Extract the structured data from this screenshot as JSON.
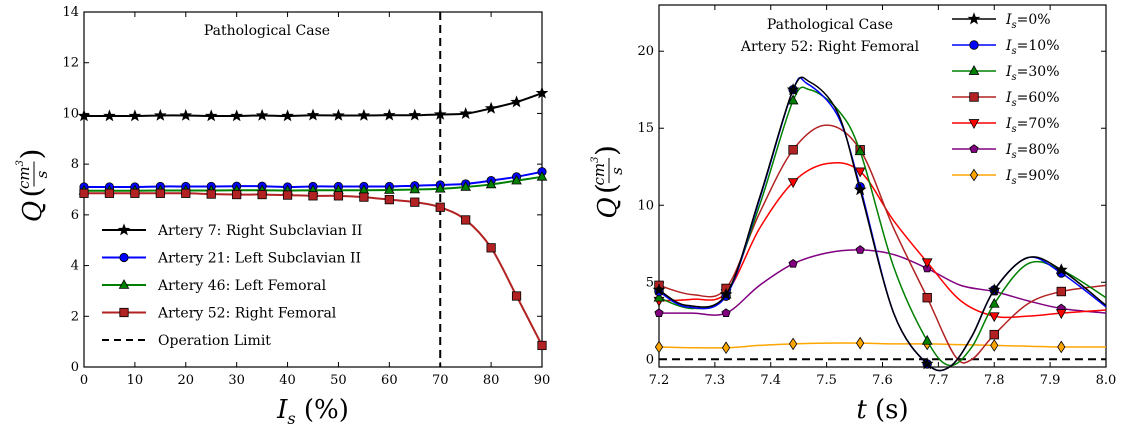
{
  "chart_data": [
    {
      "type": "line",
      "annotation": [
        "Pathological Case"
      ],
      "xlabel": {
        "main": "I",
        "sub": "s",
        "rest": " (%)"
      },
      "ylabel": {
        "main": "Q",
        "frac_num": "cm",
        "frac_num_sup": "3",
        "frac_den": "s"
      },
      "xlim": [
        0,
        90
      ],
      "ylim": [
        0,
        14
      ],
      "xticks": [
        "0",
        "10",
        "20",
        "30",
        "40",
        "50",
        "60",
        "70",
        "80",
        "90"
      ],
      "yticks": [
        "0",
        "2",
        "4",
        "6",
        "8",
        "10",
        "12",
        "14"
      ],
      "grid": false,
      "legend_position": "lower-left",
      "x": [
        0,
        5,
        10,
        15,
        20,
        25,
        30,
        35,
        40,
        45,
        50,
        55,
        60,
        65,
        70,
        75,
        80,
        85,
        90
      ],
      "series": [
        {
          "name": "Artery 7: Right Subclavian II",
          "color": "#000000",
          "marker": "star",
          "values": [
            9.9,
            9.9,
            9.9,
            9.92,
            9.92,
            9.9,
            9.9,
            9.92,
            9.9,
            9.93,
            9.92,
            9.92,
            9.93,
            9.93,
            9.96,
            9.99,
            10.2,
            10.45,
            10.8
          ]
        },
        {
          "name": "Artery 21: Left Subclavian II",
          "color": "#0000ff",
          "marker": "circle",
          "values": [
            7.1,
            7.1,
            7.1,
            7.12,
            7.12,
            7.12,
            7.13,
            7.13,
            7.1,
            7.12,
            7.12,
            7.12,
            7.12,
            7.15,
            7.18,
            7.22,
            7.35,
            7.5,
            7.7
          ]
        },
        {
          "name": "Artery 46: Left Femoral",
          "color": "#008000",
          "marker": "triangle-up",
          "values": [
            6.95,
            6.95,
            6.95,
            6.96,
            6.96,
            6.96,
            6.97,
            6.97,
            6.96,
            6.97,
            6.97,
            6.97,
            6.98,
            7.0,
            7.03,
            7.1,
            7.2,
            7.35,
            7.5
          ]
        },
        {
          "name": "Artery 52: Right Femoral",
          "color": "#b22222",
          "marker": "square",
          "values": [
            6.85,
            6.85,
            6.85,
            6.85,
            6.85,
            6.82,
            6.8,
            6.8,
            6.78,
            6.75,
            6.75,
            6.7,
            6.6,
            6.5,
            6.3,
            5.8,
            4.7,
            2.8,
            0.85
          ]
        }
      ],
      "reference_lines": [
        {
          "name": "Operation Limit",
          "orientation": "vertical",
          "value": 70,
          "color": "#000000",
          "style": "dashed"
        }
      ]
    },
    {
      "type": "line",
      "annotation": [
        "Pathological Case",
        "Artery 52: Right Femoral"
      ],
      "xlabel": {
        "main": "t",
        "rest": " (s)"
      },
      "ylabel": {
        "main": "Q",
        "frac_num": "cm",
        "frac_num_sup": "3",
        "frac_den": "s"
      },
      "xlim": [
        7.2,
        8.0
      ],
      "ylim": [
        -0.5,
        23
      ],
      "xticks": [
        "7.2",
        "7.3",
        "7.4",
        "7.5",
        "7.6",
        "7.7",
        "7.8",
        "7.9",
        "8.0"
      ],
      "yticks": [
        "0",
        "5",
        "10",
        "15",
        "20"
      ],
      "grid": false,
      "legend_position": "top-right",
      "reference_lines": [
        {
          "orientation": "horizontal",
          "value": 0,
          "color": "#000000",
          "style": "dashed"
        }
      ],
      "series": [
        {
          "name": "I_s=0%",
          "label_main": "I",
          "label_sub": "s",
          "label_rest": "=0%",
          "color": "#000000",
          "marker": "star",
          "x": [
            7.2,
            7.25,
            7.32,
            7.38,
            7.44,
            7.47,
            7.52,
            7.56,
            7.62,
            7.68,
            7.72,
            7.76,
            7.8,
            7.86,
            7.92,
            8.0
          ],
          "y": [
            4.5,
            3.5,
            4.2,
            10.5,
            17.5,
            18.0,
            16.0,
            11.0,
            3.0,
            -0.3,
            -0.5,
            1.5,
            4.5,
            6.6,
            5.8,
            3.5
          ],
          "marker_x": [
            7.2,
            7.32,
            7.44,
            7.56,
            7.68,
            7.8,
            7.92
          ]
        },
        {
          "name": "I_s=10%",
          "label_main": "I",
          "label_sub": "s",
          "label_rest": "=10%",
          "color": "#0000ff",
          "marker": "circle",
          "x": [
            7.2,
            7.25,
            7.32,
            7.38,
            7.44,
            7.465,
            7.52,
            7.56,
            7.62,
            7.68,
            7.72,
            7.76,
            7.8,
            7.86,
            7.92,
            8.0
          ],
          "y": [
            4.4,
            3.4,
            4.1,
            10.4,
            17.5,
            17.9,
            15.8,
            11.2,
            3.0,
            -0.3,
            -0.5,
            1.5,
            4.5,
            6.6,
            5.6,
            3.4
          ],
          "marker_x": [
            7.2,
            7.32,
            7.44,
            7.56,
            7.68,
            7.8,
            7.92
          ]
        },
        {
          "name": "I_s=30%",
          "label_main": "I",
          "label_sub": "s",
          "label_rest": "=30%",
          "color": "#008000",
          "marker": "triangle-up",
          "x": [
            7.2,
            7.26,
            7.32,
            7.38,
            7.44,
            7.47,
            7.52,
            7.56,
            7.62,
            7.68,
            7.72,
            7.76,
            7.8,
            7.86,
            7.92,
            8.0
          ],
          "y": [
            4.0,
            3.3,
            4.2,
            10.0,
            16.8,
            17.5,
            16.2,
            13.5,
            6.0,
            1.2,
            -0.4,
            0.8,
            3.6,
            6.2,
            5.8,
            4.0
          ],
          "marker_x": [
            7.2,
            7.32,
            7.44,
            7.56,
            7.68,
            7.8,
            7.92
          ]
        },
        {
          "name": "I_s=60%",
          "label_main": "I",
          "label_sub": "s",
          "label_rest": "=60%",
          "color": "#b22222",
          "marker": "square",
          "x": [
            7.2,
            7.26,
            7.32,
            7.38,
            7.44,
            7.5,
            7.56,
            7.62,
            7.68,
            7.73,
            7.76,
            7.8,
            7.86,
            7.92,
            8.0
          ],
          "y": [
            4.8,
            4.2,
            4.6,
            9.5,
            13.6,
            15.2,
            13.6,
            8.5,
            4.0,
            0.2,
            0.0,
            1.6,
            3.6,
            4.4,
            4.8
          ],
          "marker_x": [
            7.2,
            7.32,
            7.44,
            7.56,
            7.68,
            7.8,
            7.92
          ]
        },
        {
          "name": "I_s=70%",
          "label_main": "I",
          "label_sub": "s",
          "label_rest": "=70%",
          "color": "#ff0000",
          "marker": "triangle-down",
          "x": [
            7.2,
            7.26,
            7.32,
            7.38,
            7.44,
            7.5,
            7.56,
            7.62,
            7.68,
            7.74,
            7.8,
            7.86,
            7.92,
            8.0
          ],
          "y": [
            3.8,
            3.9,
            4.3,
            8.5,
            11.5,
            12.7,
            12.2,
            9.0,
            6.3,
            3.8,
            2.8,
            2.8,
            3.0,
            3.2
          ],
          "marker_x": [
            7.2,
            7.32,
            7.44,
            7.56,
            7.68,
            7.8,
            7.92
          ]
        },
        {
          "name": "I_s=80%",
          "label_main": "I",
          "label_sub": "s",
          "label_rest": "=80%",
          "color": "#800080",
          "marker": "pentagon",
          "x": [
            7.2,
            7.26,
            7.32,
            7.38,
            7.44,
            7.5,
            7.56,
            7.62,
            7.68,
            7.74,
            7.8,
            7.86,
            7.92,
            8.0
          ],
          "y": [
            3.0,
            3.0,
            3.0,
            4.8,
            6.2,
            6.9,
            7.1,
            6.8,
            5.9,
            4.8,
            4.4,
            3.8,
            3.3,
            3.0
          ],
          "marker_x": [
            7.2,
            7.32,
            7.44,
            7.56,
            7.68,
            7.8,
            7.92
          ]
        },
        {
          "name": "I_s=90%",
          "label_main": "I",
          "label_sub": "s",
          "label_rest": "=90%",
          "color": "#ffa500",
          "marker": "diamond",
          "x": [
            7.2,
            7.26,
            7.32,
            7.38,
            7.44,
            7.5,
            7.56,
            7.62,
            7.68,
            7.74,
            7.8,
            7.86,
            7.92,
            8.0
          ],
          "y": [
            0.8,
            0.75,
            0.75,
            0.9,
            1.0,
            1.05,
            1.05,
            1.0,
            1.0,
            0.95,
            0.9,
            0.85,
            0.8,
            0.8
          ],
          "marker_x": [
            7.2,
            7.32,
            7.44,
            7.56,
            7.68,
            7.8,
            7.92
          ]
        }
      ]
    }
  ]
}
